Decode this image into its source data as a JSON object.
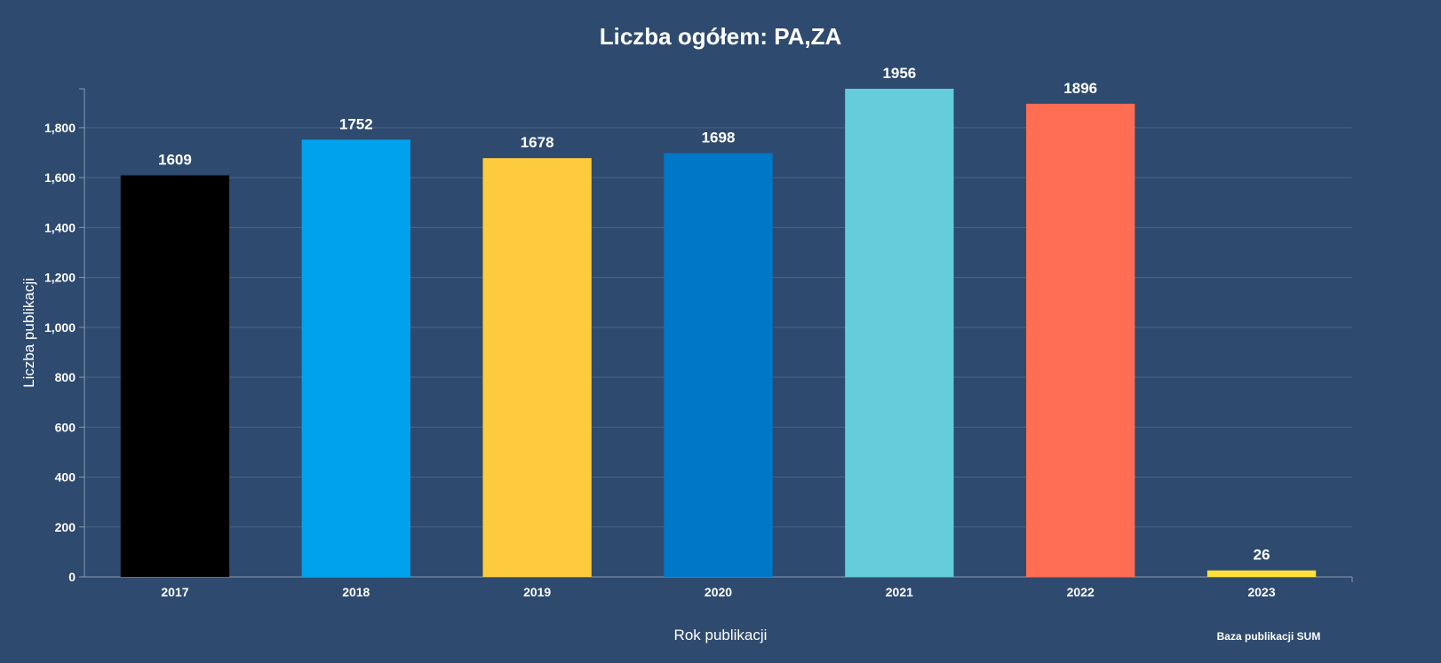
{
  "chart_data": {
    "type": "bar",
    "title": "Liczba ogółem: PA,ZA",
    "xlabel": "Rok publikacji",
    "ylabel": "Liczba publikacji",
    "categories": [
      "2017",
      "2018",
      "2019",
      "2020",
      "2021",
      "2022",
      "2023"
    ],
    "values": [
      1609,
      1752,
      1678,
      1698,
      1956,
      1896,
      26
    ],
    "value_labels": [
      "1609",
      "1752",
      "1678",
      "1698",
      "1956",
      "1896",
      "26"
    ],
    "colors": [
      "#000000",
      "#00a2ed",
      "#fdcb3d",
      "#0078c8",
      "#64ccda",
      "#ff6d52",
      "#fde13a"
    ],
    "ylim": [
      0,
      1956
    ],
    "yticks": [
      0,
      200,
      400,
      600,
      800,
      1000,
      1200,
      1400,
      1600,
      1800
    ],
    "ytick_labels": [
      "0",
      "200",
      "400",
      "600",
      "800",
      "1,000",
      "1,200",
      "1,400",
      "1,600",
      "1,800"
    ],
    "grid": true,
    "legend": "none",
    "credit": "Baza publikacji SUM",
    "background": "#2e4a6e"
  }
}
